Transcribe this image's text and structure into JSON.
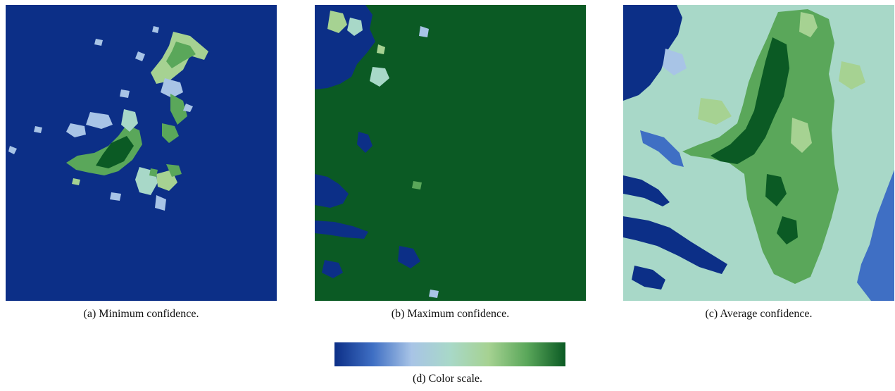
{
  "colors": {
    "deep_blue": "#0c2f87",
    "mid_blue": "#3f6fc4",
    "light_blue": "#a8c4e6",
    "cyan_green": "#a8d8c8",
    "light_green": "#a6d292",
    "mid_green": "#5aa75a",
    "dark_green": "#0b5a24"
  },
  "colorscale": [
    "#0c2f87",
    "#3f6fc4",
    "#a8c4e6",
    "#a8d8c8",
    "#a6d292",
    "#5aa75a",
    "#0b5a24"
  ],
  "captions": {
    "a": "(a) Minimum confidence.",
    "b": "(b) Maximum confidence.",
    "c": "(c) Average confidence.",
    "d": "(d) Color scale."
  }
}
